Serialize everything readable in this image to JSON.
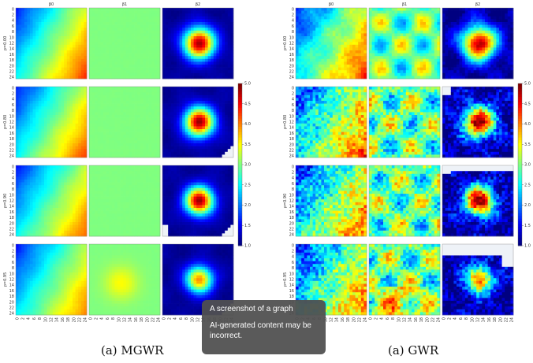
{
  "chart_data": [
    {
      "type": "heatmap",
      "caption": "(a) MGWR",
      "columns": [
        "β0",
        "β1",
        "β2"
      ],
      "rows": [
        "ρ=0.00",
        "ρ=0.80",
        "ρ=0.90",
        "ρ=0.95"
      ],
      "ticks": [
        "0",
        "2",
        "4",
        "6",
        "8",
        "10",
        "12",
        "14",
        "16",
        "18",
        "20",
        "22",
        "24"
      ],
      "grid_size": 25,
      "clim": [
        1.0,
        5.0
      ],
      "colormap": "jet",
      "missing_color": "#eef2f7"
    },
    {
      "type": "heatmap",
      "caption": "(a) GWR",
      "columns": [
        "β0",
        "β1",
        "β2"
      ],
      "rows": [
        "ρ=0.00",
        "ρ=0.80",
        "ρ=0.90",
        "ρ=0.95"
      ],
      "ticks": [
        "0",
        "2",
        "4",
        "6",
        "8",
        "10",
        "12",
        "14",
        "16",
        "18",
        "20",
        "22",
        "24"
      ],
      "grid_size": 25,
      "clim": [
        1.0,
        5.0
      ],
      "colormap": "jet",
      "colorbar_ticks": [
        "1.0",
        "1.5",
        "2.0",
        "2.5",
        "3.0",
        "3.5",
        "4.0",
        "4.5",
        "5.0"
      ]
    }
  ],
  "captions": {
    "left": "(a) MGWR",
    "right": "(a) GWR"
  },
  "tooltip": {
    "line1": "A screenshot of a graph",
    "line2": "AI-generated content may be incorrect."
  }
}
